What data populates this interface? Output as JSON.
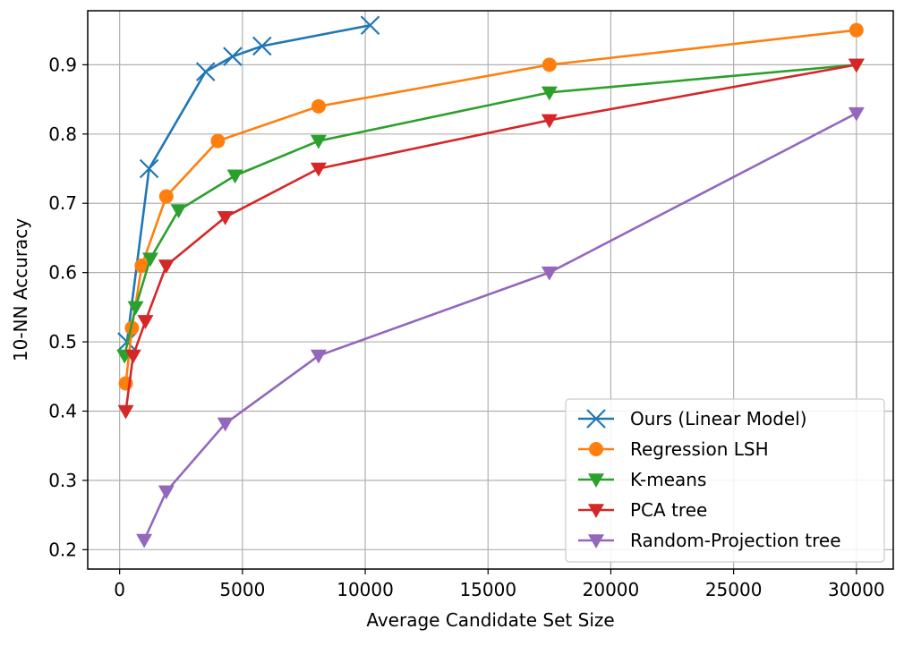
{
  "chart_data": {
    "type": "line",
    "xlabel": "Average Candidate Set Size",
    "ylabel": "10-NN Accuracy",
    "xlim": [
      -1300,
      31500
    ],
    "ylim": [
      0.172,
      0.978
    ],
    "xticks": [
      0,
      5000,
      10000,
      15000,
      20000,
      25000,
      30000
    ],
    "yticks": [
      0.2,
      0.3,
      0.4,
      0.5,
      0.6,
      0.7,
      0.8,
      0.9
    ],
    "grid": true,
    "legend_position": "lower right",
    "series": [
      {
        "name": "Ours (Linear Model)",
        "color": "#1f77b4",
        "marker": "x",
        "x": [
          300,
          1200,
          3500,
          4600,
          5800,
          10200
        ],
        "y": [
          0.5,
          0.75,
          0.89,
          0.912,
          0.927,
          0.957
        ]
      },
      {
        "name": "Regression LSH",
        "color": "#ff7f0e",
        "marker": "circle",
        "x": [
          250,
          500,
          900,
          1900,
          4000,
          8100,
          17500,
          30000
        ],
        "y": [
          0.44,
          0.52,
          0.61,
          0.71,
          0.79,
          0.84,
          0.9,
          0.95
        ]
      },
      {
        "name": "K-means",
        "color": "#2ca02c",
        "marker": "triangle-down",
        "x": [
          200,
          650,
          1250,
          2400,
          4700,
          8100,
          17500,
          30000
        ],
        "y": [
          0.48,
          0.55,
          0.62,
          0.69,
          0.74,
          0.79,
          0.86,
          0.9
        ]
      },
      {
        "name": "PCA tree",
        "color": "#d62728",
        "marker": "triangle-down",
        "x": [
          250,
          550,
          1050,
          1900,
          4300,
          8100,
          17500,
          30000
        ],
        "y": [
          0.4,
          0.48,
          0.53,
          0.61,
          0.68,
          0.75,
          0.82,
          0.9
        ]
      },
      {
        "name": "Random-Projection tree",
        "color": "#9467bd",
        "marker": "triangle-down",
        "x": [
          1000,
          1900,
          4300,
          8100,
          17500,
          30000
        ],
        "y": [
          0.214,
          0.284,
          0.382,
          0.48,
          0.6,
          0.83
        ]
      }
    ]
  }
}
